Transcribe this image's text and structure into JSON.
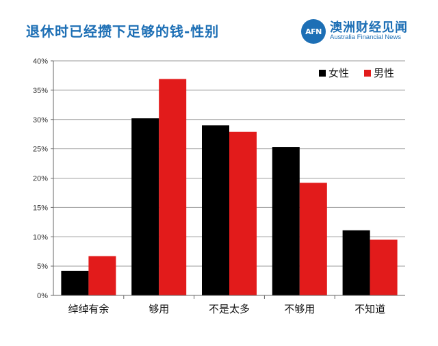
{
  "title": "退休时已经攒下足够的钱-性别",
  "brand": {
    "logo_text": "AFN",
    "name_cn": "澳洲财经见闻",
    "name_en": "Australia Financial News"
  },
  "chart_data": {
    "type": "bar",
    "categories": [
      "绰绰有余",
      "够用",
      "不是太多",
      "不够用",
      "不知道"
    ],
    "series": [
      {
        "name": "女性",
        "color": "#000000",
        "values": [
          4.2,
          30.2,
          29.0,
          25.3,
          11.1
        ]
      },
      {
        "name": "男性",
        "color": "#e21b1b",
        "values": [
          6.7,
          36.9,
          27.9,
          19.2,
          9.5
        ]
      }
    ],
    "ylim": [
      0,
      40
    ],
    "yticks": [
      "0%",
      "5%",
      "10%",
      "15%",
      "20%",
      "25%",
      "30%",
      "35%",
      "40%"
    ],
    "grid": true,
    "legend_position": "top-right"
  }
}
